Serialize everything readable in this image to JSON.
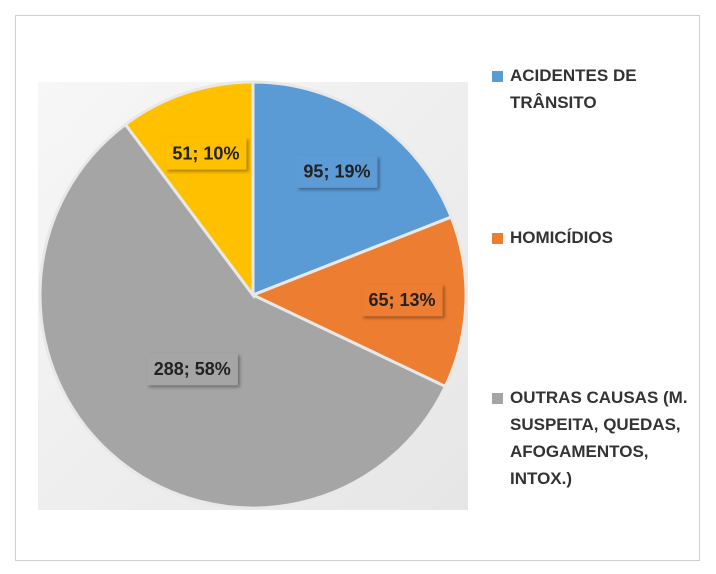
{
  "chart_data": {
    "type": "pie",
    "categories": [
      "ACIDENTES DE TRÂNSITO",
      "HOMICÍDIOS",
      "OUTRAS CAUSAS (M. SUSPEITA, QUEDAS, AFOGAMENTOS, INTOX.)",
      null
    ],
    "values": [
      95,
      65,
      288,
      51
    ],
    "value_labels": [
      "95; 19%",
      "65; 13%",
      "288; 58%",
      "51; 10%"
    ],
    "colors": [
      "#5b9bd5",
      "#ed7d31",
      "#a5a5a5",
      "#ffc000"
    ],
    "legend": "right"
  }
}
